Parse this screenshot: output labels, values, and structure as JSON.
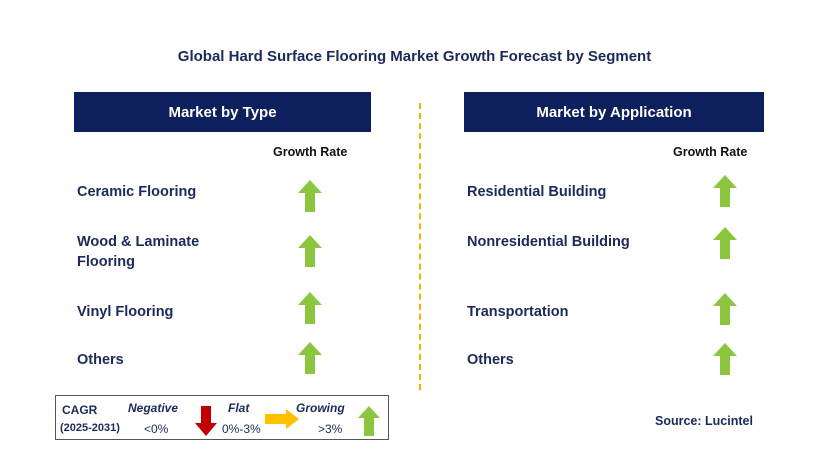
{
  "title": "Global Hard Surface Flooring Market Growth Forecast by Segment",
  "left_panel": {
    "header": "Market by Type",
    "growth_label": "Growth Rate",
    "items": [
      {
        "label": "Ceramic Flooring",
        "trend": "growing"
      },
      {
        "label": "Wood & Laminate Flooring",
        "trend": "growing"
      },
      {
        "label": "Vinyl Flooring",
        "trend": "growing"
      },
      {
        "label": "Others",
        "trend": "growing"
      }
    ]
  },
  "right_panel": {
    "header": "Market by Application",
    "growth_label": "Growth Rate",
    "items": [
      {
        "label": "Residential Building",
        "trend": "growing"
      },
      {
        "label": "Nonresidential Building",
        "trend": "growing"
      },
      {
        "label": "Transportation",
        "trend": "growing"
      },
      {
        "label": "Others",
        "trend": "growing"
      }
    ]
  },
  "legend": {
    "cagr_label": "CAGR",
    "period": "(2025-2031)",
    "negative": {
      "label": "Negative",
      "range": "<0%"
    },
    "flat": {
      "label": "Flat",
      "range": "0%-3%"
    },
    "growing": {
      "label": "Growing",
      "range": ">3%"
    }
  },
  "source": "Source: Lucintel",
  "colors": {
    "navy": "#0d1f5c",
    "growing_arrow": "#8cc63f",
    "negative_arrow": "#c00000",
    "flat_arrow": "#ffc000",
    "divider": "#f2b400"
  }
}
